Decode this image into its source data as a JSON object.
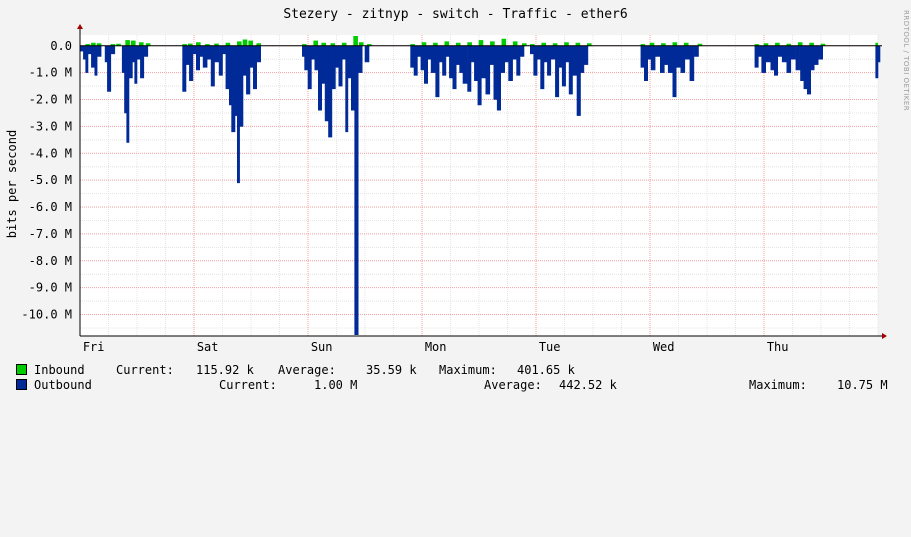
{
  "chart_data": {
    "type": "area",
    "title": "Stezery - zitnyp - switch - Traffic - ether6",
    "ylabel": "bits per second",
    "watermark": "RRDTOOL / TOBI OETIKER",
    "ylim": [
      -10.8,
      0.4
    ],
    "y_ticks": [
      {
        "value": 0,
        "label": "0.0"
      },
      {
        "value": -1,
        "label": "-1.0 M"
      },
      {
        "value": -2,
        "label": "-2.0 M"
      },
      {
        "value": -3,
        "label": "-3.0 M"
      },
      {
        "value": -4,
        "label": "-4.0 M"
      },
      {
        "value": -5,
        "label": "-5.0 M"
      },
      {
        "value": -6,
        "label": "-6.0 M"
      },
      {
        "value": -7,
        "label": "-7.0 M"
      },
      {
        "value": -8,
        "label": "-8.0 M"
      },
      {
        "value": -9,
        "label": "-9.0 M"
      },
      {
        "value": -10,
        "label": "-10.0 M"
      }
    ],
    "x_ticks": [
      {
        "day": 0.12,
        "label": "Fri"
      },
      {
        "day": 1.12,
        "label": "Sat"
      },
      {
        "day": 2.12,
        "label": "Sun"
      },
      {
        "day": 3.12,
        "label": "Mon"
      },
      {
        "day": 4.12,
        "label": "Tue"
      },
      {
        "day": 5.12,
        "label": "Wed"
      },
      {
        "day": 6.12,
        "label": "Thu"
      }
    ],
    "x_range_days": [
      0,
      7
    ],
    "grid": true,
    "series": [
      {
        "name": "Inbound",
        "color": "#00cc00",
        "unit": "Mbit/s",
        "points": [
          [
            0.05,
            0.05
          ],
          [
            0.1,
            0.1
          ],
          [
            0.15,
            0.08
          ],
          [
            0.27,
            0.05
          ],
          [
            0.32,
            0.06
          ],
          [
            0.4,
            0.2
          ],
          [
            0.45,
            0.18
          ],
          [
            0.52,
            0.12
          ],
          [
            0.58,
            0.08
          ],
          [
            0.9,
            0.05
          ],
          [
            0.95,
            0.07
          ],
          [
            1.02,
            0.12
          ],
          [
            1.1,
            0.05
          ],
          [
            1.18,
            0.07
          ],
          [
            1.28,
            0.1
          ],
          [
            1.38,
            0.15
          ],
          [
            1.43,
            0.22
          ],
          [
            1.48,
            0.18
          ],
          [
            1.55,
            0.08
          ],
          [
            1.95,
            0.05
          ],
          [
            2.05,
            0.18
          ],
          [
            2.12,
            0.1
          ],
          [
            2.2,
            0.08
          ],
          [
            2.3,
            0.1
          ],
          [
            2.4,
            0.35
          ],
          [
            2.45,
            0.12
          ],
          [
            2.52,
            0.05
          ],
          [
            2.9,
            0.05
          ],
          [
            3.0,
            0.12
          ],
          [
            3.1,
            0.1
          ],
          [
            3.2,
            0.15
          ],
          [
            3.3,
            0.1
          ],
          [
            3.4,
            0.12
          ],
          [
            3.5,
            0.2
          ],
          [
            3.6,
            0.15
          ],
          [
            3.7,
            0.25
          ],
          [
            3.8,
            0.15
          ],
          [
            3.88,
            0.08
          ],
          [
            3.95,
            0.05
          ],
          [
            4.05,
            0.1
          ],
          [
            4.15,
            0.08
          ],
          [
            4.25,
            0.12
          ],
          [
            4.35,
            0.1
          ],
          [
            4.45,
            0.08
          ],
          [
            4.92,
            0.05
          ],
          [
            5.0,
            0.1
          ],
          [
            5.1,
            0.08
          ],
          [
            5.2,
            0.12
          ],
          [
            5.3,
            0.1
          ],
          [
            5.42,
            0.06
          ],
          [
            5.92,
            0.05
          ],
          [
            6.0,
            0.08
          ],
          [
            6.1,
            0.1
          ],
          [
            6.2,
            0.06
          ],
          [
            6.3,
            0.12
          ],
          [
            6.4,
            0.1
          ],
          [
            6.5,
            0.06
          ],
          [
            6.98,
            0.1
          ]
        ]
      },
      {
        "name": "Outbound",
        "color": "#002a97",
        "unit": "Mbit/s",
        "points": [
          [
            0.0,
            -0.2
          ],
          [
            0.03,
            -0.5
          ],
          [
            0.05,
            -1.0
          ],
          [
            0.07,
            -0.3
          ],
          [
            0.1,
            -0.8
          ],
          [
            0.13,
            -1.1
          ],
          [
            0.15,
            -0.4
          ],
          [
            0.22,
            -0.6
          ],
          [
            0.24,
            -1.7
          ],
          [
            0.27,
            -0.3
          ],
          [
            0.37,
            -1.0
          ],
          [
            0.39,
            -2.5
          ],
          [
            0.41,
            -3.6
          ],
          [
            0.43,
            -1.2
          ],
          [
            0.46,
            -0.6
          ],
          [
            0.48,
            -1.4
          ],
          [
            0.5,
            -0.5
          ],
          [
            0.53,
            -1.2
          ],
          [
            0.56,
            -0.4
          ],
          [
            0.9,
            -1.7
          ],
          [
            0.93,
            -0.7
          ],
          [
            0.96,
            -1.3
          ],
          [
            0.99,
            -0.3
          ],
          [
            1.02,
            -0.9
          ],
          [
            1.05,
            -0.4
          ],
          [
            1.08,
            -0.8
          ],
          [
            1.12,
            -0.5
          ],
          [
            1.15,
            -1.5
          ],
          [
            1.18,
            -0.6
          ],
          [
            1.22,
            -1.1
          ],
          [
            1.25,
            -0.3
          ],
          [
            1.28,
            -1.6
          ],
          [
            1.31,
            -2.2
          ],
          [
            1.33,
            -3.2
          ],
          [
            1.36,
            -2.6
          ],
          [
            1.38,
            -5.1
          ],
          [
            1.4,
            -3.0
          ],
          [
            1.43,
            -1.1
          ],
          [
            1.46,
            -1.8
          ],
          [
            1.49,
            -0.8
          ],
          [
            1.52,
            -1.6
          ],
          [
            1.55,
            -0.6
          ],
          [
            1.95,
            -0.4
          ],
          [
            1.97,
            -0.9
          ],
          [
            2.0,
            -1.6
          ],
          [
            2.03,
            -0.5
          ],
          [
            2.06,
            -0.9
          ],
          [
            2.09,
            -2.4
          ],
          [
            2.12,
            -1.4
          ],
          [
            2.15,
            -2.8
          ],
          [
            2.18,
            -3.4
          ],
          [
            2.21,
            -1.6
          ],
          [
            2.24,
            -0.8
          ],
          [
            2.27,
            -1.5
          ],
          [
            2.3,
            -0.5
          ],
          [
            2.33,
            -3.2
          ],
          [
            2.35,
            -1.2
          ],
          [
            2.38,
            -2.4
          ],
          [
            2.41,
            -10.75
          ],
          [
            2.44,
            -1.0
          ],
          [
            2.5,
            -0.6
          ],
          [
            2.9,
            -0.8
          ],
          [
            2.93,
            -1.1
          ],
          [
            2.96,
            -0.4
          ],
          [
            2.99,
            -0.9
          ],
          [
            3.02,
            -1.4
          ],
          [
            3.05,
            -0.5
          ],
          [
            3.08,
            -1.0
          ],
          [
            3.12,
            -1.9
          ],
          [
            3.15,
            -0.6
          ],
          [
            3.18,
            -1.1
          ],
          [
            3.21,
            -0.4
          ],
          [
            3.24,
            -1.2
          ],
          [
            3.27,
            -1.6
          ],
          [
            3.3,
            -0.7
          ],
          [
            3.33,
            -1.0
          ],
          [
            3.36,
            -1.4
          ],
          [
            3.4,
            -1.7
          ],
          [
            3.43,
            -0.6
          ],
          [
            3.46,
            -1.3
          ],
          [
            3.49,
            -2.2
          ],
          [
            3.52,
            -1.2
          ],
          [
            3.56,
            -1.8
          ],
          [
            3.6,
            -0.7
          ],
          [
            3.63,
            -2.0
          ],
          [
            3.66,
            -2.4
          ],
          [
            3.69,
            -1.0
          ],
          [
            3.73,
            -0.6
          ],
          [
            3.76,
            -1.3
          ],
          [
            3.8,
            -0.5
          ],
          [
            3.83,
            -1.1
          ],
          [
            3.86,
            -0.4
          ],
          [
            3.95,
            -0.3
          ],
          [
            3.98,
            -1.1
          ],
          [
            4.01,
            -0.5
          ],
          [
            4.04,
            -1.6
          ],
          [
            4.07,
            -0.6
          ],
          [
            4.1,
            -1.1
          ],
          [
            4.13,
            -0.5
          ],
          [
            4.17,
            -1.9
          ],
          [
            4.2,
            -0.8
          ],
          [
            4.23,
            -1.5
          ],
          [
            4.26,
            -0.6
          ],
          [
            4.29,
            -1.8
          ],
          [
            4.32,
            -1.1
          ],
          [
            4.36,
            -2.6
          ],
          [
            4.39,
            -1.0
          ],
          [
            4.42,
            -0.7
          ],
          [
            4.92,
            -0.8
          ],
          [
            4.95,
            -1.3
          ],
          [
            4.98,
            -0.5
          ],
          [
            5.01,
            -0.9
          ],
          [
            5.05,
            -0.4
          ],
          [
            5.09,
            -1.0
          ],
          [
            5.13,
            -0.7
          ],
          [
            5.16,
            -1.0
          ],
          [
            5.2,
            -1.9
          ],
          [
            5.23,
            -0.8
          ],
          [
            5.27,
            -1.0
          ],
          [
            5.31,
            -0.5
          ],
          [
            5.35,
            -1.3
          ],
          [
            5.39,
            -0.4
          ],
          [
            5.92,
            -0.8
          ],
          [
            5.95,
            -0.4
          ],
          [
            5.98,
            -1.0
          ],
          [
            6.02,
            -0.6
          ],
          [
            6.06,
            -0.9
          ],
          [
            6.09,
            -1.1
          ],
          [
            6.12,
            -0.4
          ],
          [
            6.16,
            -0.6
          ],
          [
            6.2,
            -1.0
          ],
          [
            6.24,
            -0.5
          ],
          [
            6.28,
            -0.9
          ],
          [
            6.32,
            -1.3
          ],
          [
            6.35,
            -1.6
          ],
          [
            6.38,
            -1.8
          ],
          [
            6.41,
            -0.9
          ],
          [
            6.44,
            -0.7
          ],
          [
            6.48,
            -0.5
          ],
          [
            6.98,
            -1.2
          ],
          [
            7.0,
            -0.6
          ]
        ]
      }
    ]
  },
  "legend": {
    "inbound": {
      "name": "Inbound",
      "current_label": "Current:",
      "current": "115.92 k",
      "average_label": "Average:",
      "average": "35.59 k",
      "maximum_label": "Maximum:",
      "maximum": "401.65 k"
    },
    "outbound": {
      "name": "Outbound",
      "current_label": "Current:",
      "current": "1.00 M",
      "average_label": "Average:",
      "average": "442.52 k",
      "maximum_label": "Maximum:",
      "maximum": "10.75 M"
    }
  }
}
